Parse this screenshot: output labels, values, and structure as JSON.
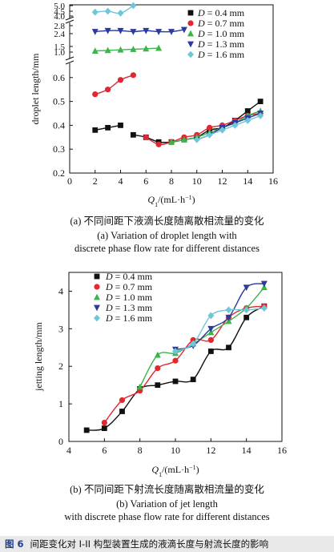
{
  "chart_data": [
    {
      "type": "line",
      "xlabel": "Q",
      "xlabel_sub": "1",
      "xlabel_unit": "/(mL·h",
      "xlabel_exp": "−1",
      "xlabel_close": ")",
      "ylabel": "droplet length/mm",
      "xlim": [
        0,
        16
      ],
      "x_ticks": [
        0,
        2,
        4,
        6,
        8,
        10,
        12,
        14,
        16
      ],
      "lower_ylim": [
        0.2,
        0.65
      ],
      "lower_y_ticks": [
        "0.2",
        "0.3",
        "0.4",
        "0.5",
        "0.6"
      ],
      "upper_y_ticks": [
        "1.0",
        "1.5",
        "2.4",
        "2.8",
        "4.0",
        "4.5",
        "5.0"
      ],
      "legend_position": "top-right",
      "series": [
        {
          "name": "D = 0.4 mm",
          "marker": "square",
          "color": "#111111",
          "x": [
            2,
            3,
            4,
            5,
            6,
            7,
            8,
            9,
            10,
            11,
            12,
            13,
            14,
            15
          ],
          "y": [
            0.38,
            0.39,
            0.4,
            0.36,
            0.35,
            0.33,
            0.33,
            0.34,
            0.35,
            0.38,
            0.39,
            0.42,
            0.46,
            0.5
          ]
        },
        {
          "name": "D = 0.7 mm",
          "marker": "circle",
          "color": "#e3262f",
          "x": [
            2,
            3,
            4,
            5,
            6,
            7,
            8,
            9,
            10,
            11,
            12,
            13,
            14,
            15
          ],
          "y": [
            0.53,
            0.55,
            0.59,
            0.61,
            0.35,
            0.32,
            0.33,
            0.35,
            0.36,
            0.39,
            0.4,
            0.42,
            0.44,
            0.45
          ]
        },
        {
          "name": "D = 1.0 mm",
          "marker": "triangle-up",
          "color": "#39b54a",
          "x": [
            2,
            3,
            4,
            5,
            6,
            7,
            8,
            9,
            10,
            11,
            12,
            13,
            14,
            15
          ],
          "y": [
            1.1,
            1.15,
            1.2,
            1.25,
            1.3,
            1.35,
            0.33,
            0.34,
            0.35,
            0.37,
            0.39,
            0.41,
            0.44,
            0.46
          ]
        },
        {
          "name": "D = 1.3 mm",
          "marker": "triangle-down",
          "color": "#2b3a9e",
          "x": [
            2,
            3,
            4,
            5,
            6,
            7,
            8,
            9,
            10,
            11,
            12,
            13,
            14,
            15
          ],
          "y": [
            2.5,
            2.55,
            2.55,
            2.5,
            2.55,
            2.5,
            2.5,
            2.6,
            0.34,
            0.36,
            0.39,
            0.41,
            0.43,
            0.45
          ]
        },
        {
          "name": "D = 1.6 mm",
          "marker": "diamond",
          "color": "#6fc6d8",
          "x": [
            2,
            3,
            4,
            5,
            10,
            11,
            12,
            13,
            14,
            15
          ],
          "y": [
            4.4,
            4.5,
            4.3,
            5.0,
            0.34,
            0.36,
            0.38,
            0.4,
            0.42,
            0.44
          ]
        }
      ]
    },
    {
      "type": "line",
      "xlabel": "Q",
      "xlabel_sub": "1",
      "xlabel_unit": "/(mL·h",
      "xlabel_exp": "−1",
      "xlabel_close": ")",
      "ylabel": "jetting length/mm",
      "xlim": [
        4,
        16
      ],
      "ylim": [
        0,
        4.5
      ],
      "x_ticks": [
        4,
        6,
        8,
        10,
        12,
        14,
        16
      ],
      "y_ticks": [
        0,
        1,
        2,
        3,
        4
      ],
      "legend_position": "top-left",
      "series": [
        {
          "name": "D = 0.4 mm",
          "marker": "square",
          "color": "#111111",
          "x": [
            5,
            6,
            7,
            8,
            9,
            10,
            11,
            12,
            13,
            14,
            15
          ],
          "y": [
            0.3,
            0.35,
            0.8,
            1.4,
            1.5,
            1.6,
            1.65,
            2.4,
            2.5,
            3.3,
            3.6
          ]
        },
        {
          "name": "D = 0.7 mm",
          "marker": "circle",
          "color": "#e3262f",
          "x": [
            6,
            7,
            8,
            9,
            10,
            11,
            12,
            13,
            14,
            15
          ],
          "y": [
            0.5,
            1.1,
            1.35,
            1.95,
            2.15,
            2.7,
            2.7,
            3.3,
            3.55,
            3.6
          ]
        },
        {
          "name": "D = 1.0 mm",
          "marker": "triangle-up",
          "color": "#39b54a",
          "x": [
            8,
            9,
            10,
            11,
            12,
            13,
            14,
            15
          ],
          "y": [
            1.45,
            2.3,
            2.35,
            2.6,
            2.9,
            3.2,
            3.55,
            4.1
          ]
        },
        {
          "name": "D = 1.3 mm",
          "marker": "triangle-down",
          "color": "#2b3a9e",
          "x": [
            10,
            11,
            12,
            13,
            14,
            15
          ],
          "y": [
            2.45,
            2.55,
            3.0,
            3.3,
            4.1,
            4.2
          ]
        },
        {
          "name": "D = 1.6 mm",
          "marker": "diamond",
          "color": "#6fc6d8",
          "x": [
            10,
            11,
            12,
            13,
            14,
            15
          ],
          "y": [
            2.4,
            2.6,
            3.35,
            3.5,
            3.5,
            3.55
          ]
        }
      ]
    }
  ],
  "captions": {
    "a_cn": "(a) 不同间距下液滴长度随离散相流量的变化",
    "a_en1": "(a) Variation of droplet length with",
    "a_en2": "discrete phase flow rate for different distances",
    "b_cn": "(b) 不同间距下射流长度随离散相流量的变化",
    "b_en1": "(b) Variation of jet length",
    "b_en2": "with discrete phase flow rate for different distances",
    "figure_label": "图 6",
    "figure_title": "间距变化对 I-II 构型装置生成的液滴长度与射流长度的影响"
  }
}
